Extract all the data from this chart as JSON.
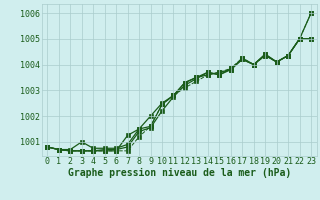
{
  "xlabel": "Graphe pression niveau de la mer (hPa)",
  "x": [
    0,
    1,
    2,
    3,
    4,
    5,
    6,
    7,
    8,
    9,
    10,
    11,
    12,
    13,
    14,
    15,
    16,
    17,
    18,
    19,
    20,
    21,
    22,
    23
  ],
  "line1": [
    1000.8,
    1000.7,
    1000.7,
    1001.0,
    1000.75,
    1000.75,
    1000.75,
    1000.9,
    1001.5,
    1001.6,
    1002.45,
    1002.8,
    1003.3,
    1003.5,
    1003.7,
    1003.6,
    1003.8,
    1004.2,
    1004.0,
    1004.4,
    1004.1,
    1004.35,
    1005.0,
    1005.0
  ],
  "line2": [
    1000.8,
    1000.7,
    1000.65,
    1000.65,
    1000.65,
    1000.65,
    1000.65,
    1001.25,
    1001.5,
    1002.0,
    1002.5,
    1002.8,
    1003.3,
    1003.5,
    1003.6,
    1003.7,
    1003.8,
    1004.25,
    1004.0,
    1004.4,
    1004.1,
    1004.35,
    1005.0,
    1006.0
  ],
  "line3": [
    1000.8,
    1000.7,
    1000.65,
    1000.65,
    1000.65,
    1000.65,
    1000.65,
    1000.65,
    1001.2,
    1001.6,
    1002.45,
    1002.8,
    1003.1,
    1003.35,
    1003.6,
    1003.7,
    1003.85,
    1004.25,
    1004.0,
    1004.35,
    1004.1,
    1004.35,
    1005.0,
    1006.0
  ],
  "line4": [
    1000.8,
    1000.7,
    1000.65,
    1000.65,
    1000.65,
    1000.7,
    1000.7,
    1000.8,
    1001.4,
    1001.55,
    1002.2,
    1002.75,
    1003.2,
    1003.45,
    1003.7,
    1003.6,
    1003.85,
    1004.2,
    1004.0,
    1004.35,
    1004.1,
    1004.35,
    1005.0,
    1005.0
  ],
  "line_color": "#1a5c1a",
  "bg_color": "#d0eeee",
  "grid_color": "#aacccc",
  "ylim": [
    1000.45,
    1006.35
  ],
  "xlim": [
    -0.5,
    23.5
  ],
  "yticks": [
    1001,
    1002,
    1003,
    1004,
    1005,
    1006
  ],
  "xticks": [
    0,
    1,
    2,
    3,
    4,
    5,
    6,
    7,
    8,
    9,
    10,
    11,
    12,
    13,
    14,
    15,
    16,
    17,
    18,
    19,
    20,
    21,
    22,
    23
  ],
  "tick_fontsize": 6,
  "xlabel_fontsize": 7
}
